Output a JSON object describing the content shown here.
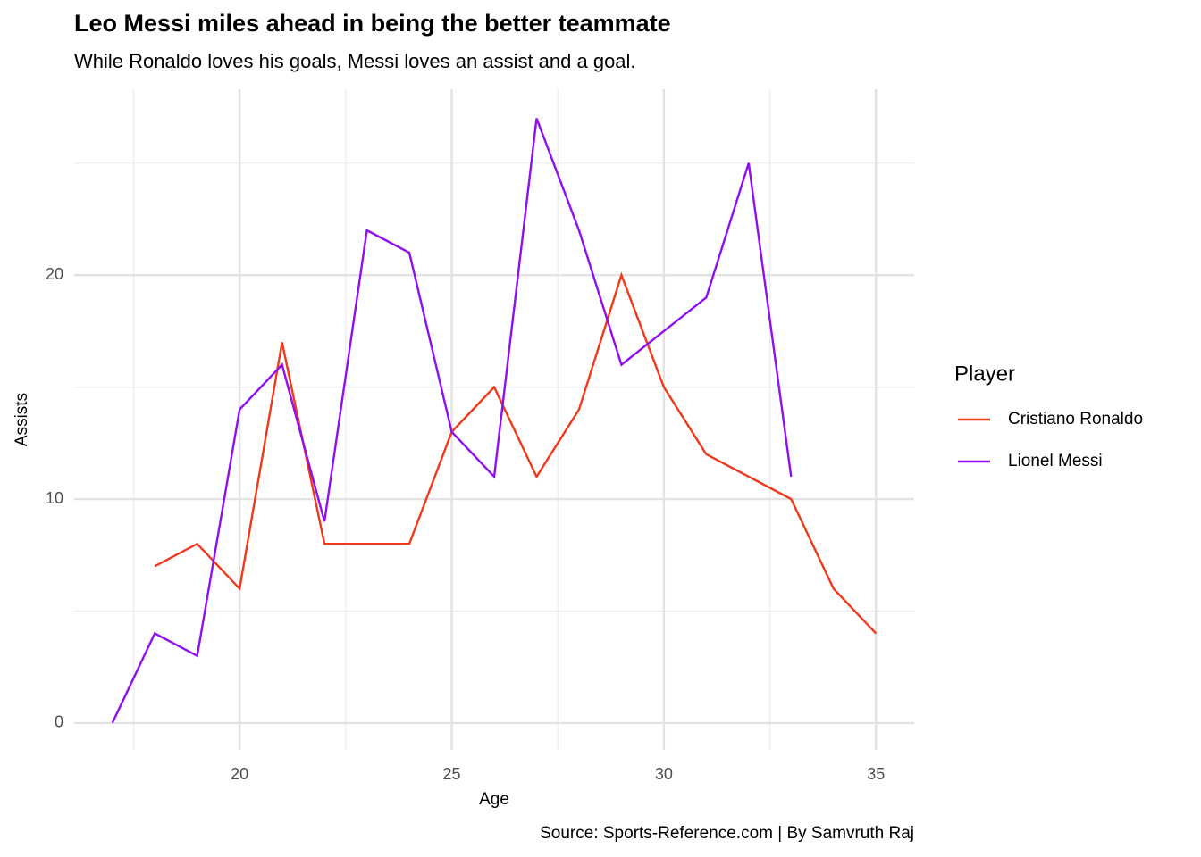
{
  "chart_data": {
    "type": "line",
    "title": "Leo Messi miles ahead in being the better teammate",
    "subtitle": "While Ronaldo loves his goals, Messi loves an assist and a goal.",
    "x_label": "Age",
    "y_label": "Assists",
    "caption": "Source: Sports-Reference.com | By Samvruth Raj",
    "legend_title": "Player",
    "legend_position": "right",
    "xlim": [
      16.1,
      35.9
    ],
    "ylim": [
      -1.2,
      28.3
    ],
    "xticks": [
      20,
      25,
      30,
      35
    ],
    "yticks": [
      0,
      10,
      20
    ],
    "x_minor_ticks": [
      17.5,
      22.5,
      27.5,
      32.5
    ],
    "y_minor_ticks": [
      5,
      15,
      25
    ],
    "grid": true,
    "series": [
      {
        "name": "Cristiano Ronaldo",
        "color": "#f0391a",
        "x": [
          18,
          19,
          20,
          21,
          22,
          23,
          24,
          25,
          26,
          27,
          28,
          29,
          30,
          31,
          32,
          33,
          34,
          35
        ],
        "values": [
          7,
          8,
          6,
          17,
          8,
          8,
          8,
          13,
          15,
          11,
          14,
          20,
          15,
          12,
          11,
          10,
          6,
          4
        ]
      },
      {
        "name": "Lionel Messi",
        "color": "#8f0ff0",
        "x": [
          17,
          18,
          19,
          20,
          21,
          22,
          23,
          24,
          25,
          26,
          27,
          28,
          29,
          31,
          32,
          33
        ],
        "values": [
          0,
          4,
          3,
          14,
          16,
          9,
          22,
          21,
          13,
          11,
          27,
          22,
          16,
          19,
          25,
          11
        ]
      }
    ]
  }
}
